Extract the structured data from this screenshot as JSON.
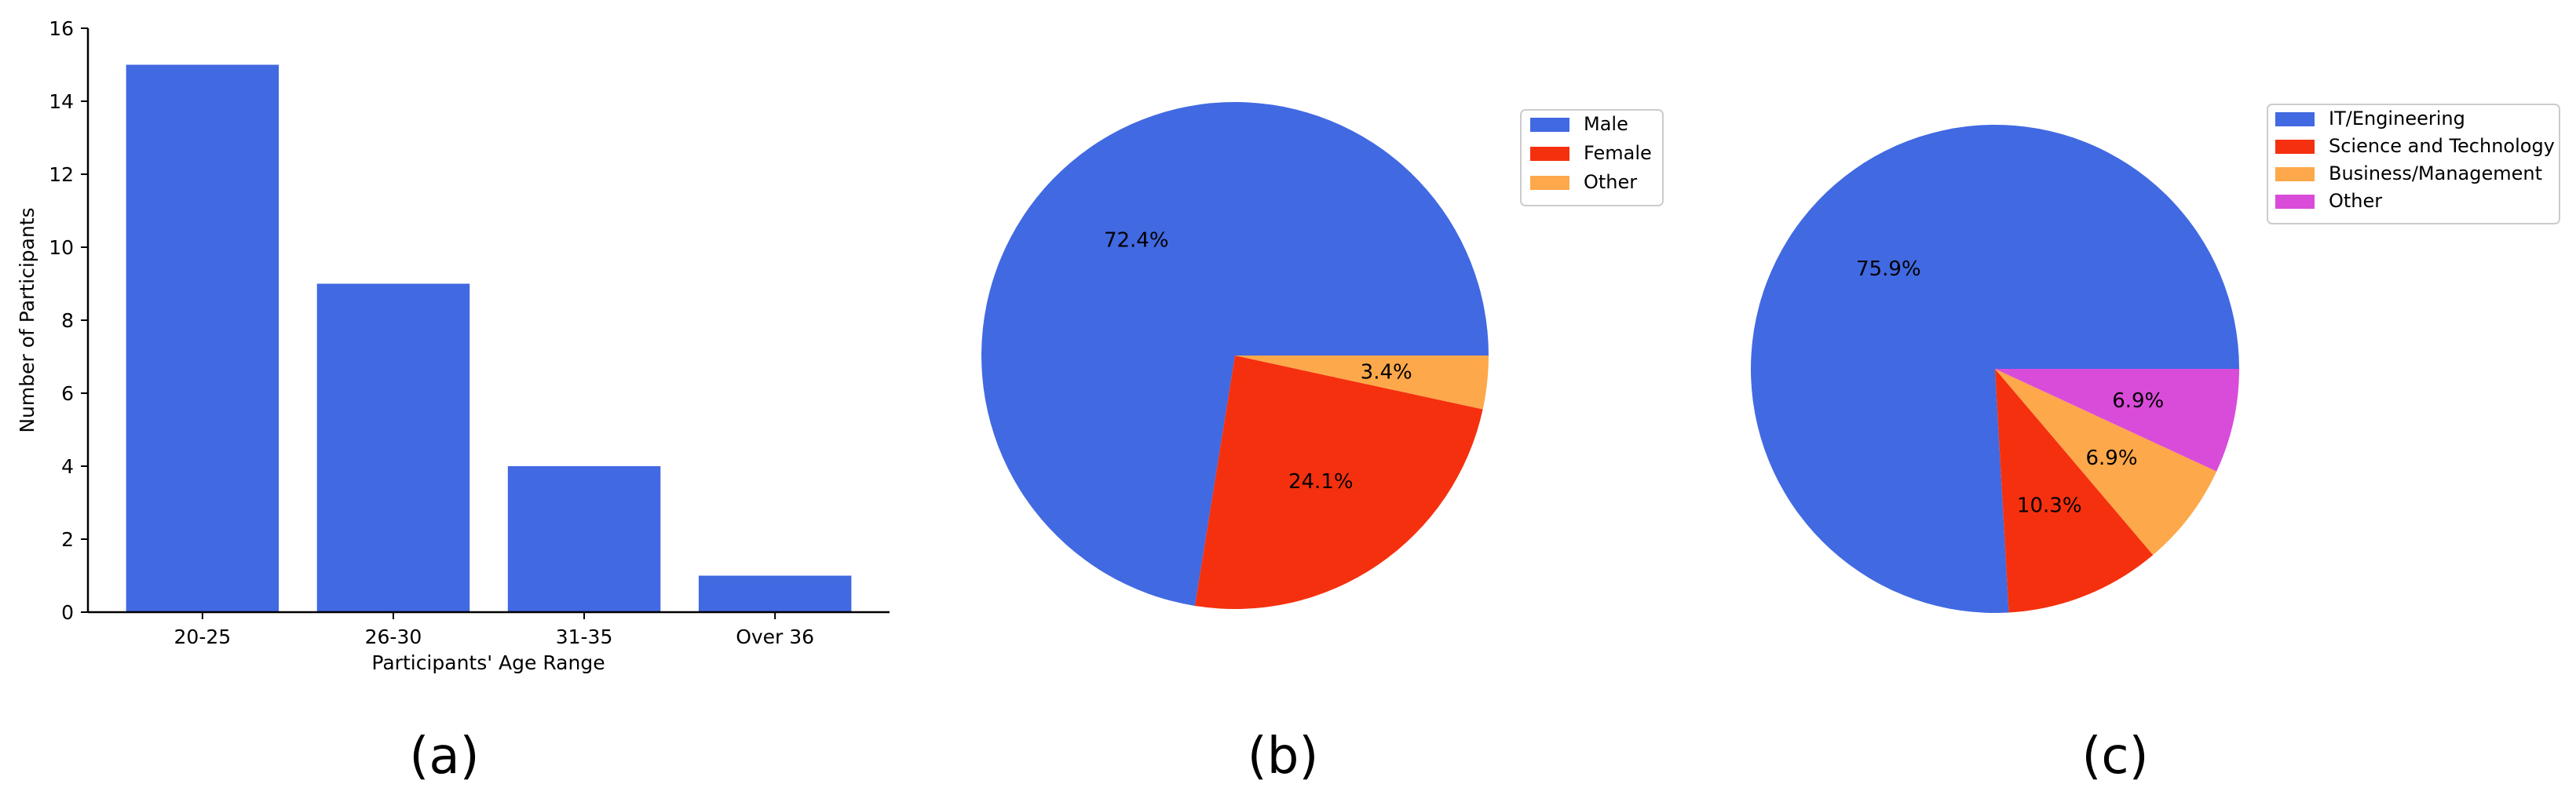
{
  "chart_data": [
    {
      "type": "bar",
      "panel_label": "(a)",
      "categories": [
        "20-25",
        "26-30",
        "31-35",
        "Over 36"
      ],
      "values": [
        15,
        9,
        4,
        1
      ],
      "xlabel": "Participants' Age Range",
      "ylabel": "Number of Participants",
      "ylim": [
        0,
        16
      ],
      "yticks": [
        0,
        2,
        4,
        6,
        8,
        10,
        12,
        14,
        16
      ],
      "color": "#4169e1",
      "grid": false
    },
    {
      "type": "pie",
      "panel_label": "(b)",
      "labels": [
        "Male",
        "Female",
        "Other"
      ],
      "values": [
        72.4,
        24.1,
        3.4
      ],
      "value_labels": [
        "72.4%",
        "24.1%",
        "3.4%"
      ],
      "colors": [
        "#4169e1",
        "#f5300f",
        "#fda84a"
      ],
      "legend_position": "top-right"
    },
    {
      "type": "pie",
      "panel_label": "(c)",
      "labels": [
        "IT/Engineering",
        "Science and Technology",
        "Business/Management",
        "Other"
      ],
      "values": [
        75.9,
        10.3,
        6.9,
        6.9
      ],
      "value_labels": [
        "75.9%",
        "10.3%",
        "6.9%",
        "6.9%"
      ],
      "colors": [
        "#4169e1",
        "#f5300f",
        "#fda84a",
        "#d94cd9"
      ],
      "legend_position": "top-right"
    }
  ]
}
